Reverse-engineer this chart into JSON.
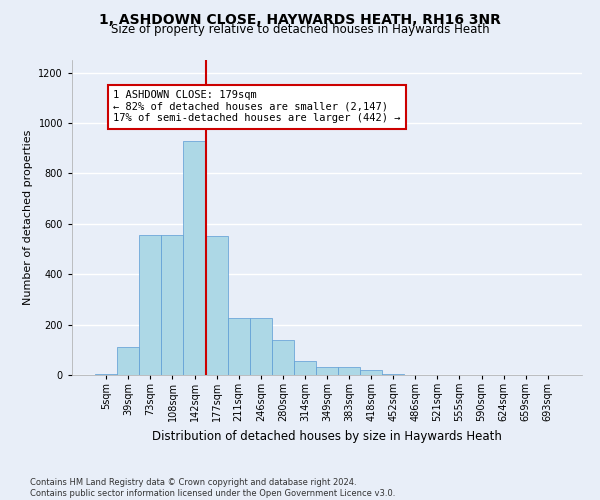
{
  "title_line1": "1, ASHDOWN CLOSE, HAYWARDS HEATH, RH16 3NR",
  "title_line2": "Size of property relative to detached houses in Haywards Heath",
  "xlabel": "Distribution of detached houses by size in Haywards Heath",
  "ylabel": "Number of detached properties",
  "bin_labels": [
    "5sqm",
    "39sqm",
    "73sqm",
    "108sqm",
    "142sqm",
    "177sqm",
    "211sqm",
    "246sqm",
    "280sqm",
    "314sqm",
    "349sqm",
    "383sqm",
    "418sqm",
    "452sqm",
    "486sqm",
    "521sqm",
    "555sqm",
    "590sqm",
    "624sqm",
    "659sqm",
    "693sqm"
  ],
  "bar_values": [
    5,
    110,
    555,
    555,
    930,
    550,
    225,
    225,
    140,
    55,
    30,
    30,
    20,
    5,
    0,
    0,
    0,
    0,
    0,
    0,
    0
  ],
  "bar_color": "#add8e6",
  "bar_edge_color": "#5b9bd5",
  "property_line_x": 4.5,
  "property_line_color": "#cc0000",
  "annotation_text": "1 ASHDOWN CLOSE: 179sqm\n← 82% of detached houses are smaller (2,147)\n17% of semi-detached houses are larger (442) →",
  "annotation_box_color": "#ffffff",
  "annotation_box_edge": "#cc0000",
  "ylim": [
    0,
    1250
  ],
  "yticks": [
    0,
    200,
    400,
    600,
    800,
    1000,
    1200
  ],
  "footnote": "Contains HM Land Registry data © Crown copyright and database right 2024.\nContains public sector information licensed under the Open Government Licence v3.0.",
  "background_color": "#e8eef8",
  "grid_color": "#ffffff",
  "title1_fontsize": 10,
  "title2_fontsize": 8.5,
  "xlabel_fontsize": 8.5,
  "ylabel_fontsize": 8,
  "tick_fontsize": 7,
  "annot_fontsize": 7.5,
  "footnote_fontsize": 6
}
